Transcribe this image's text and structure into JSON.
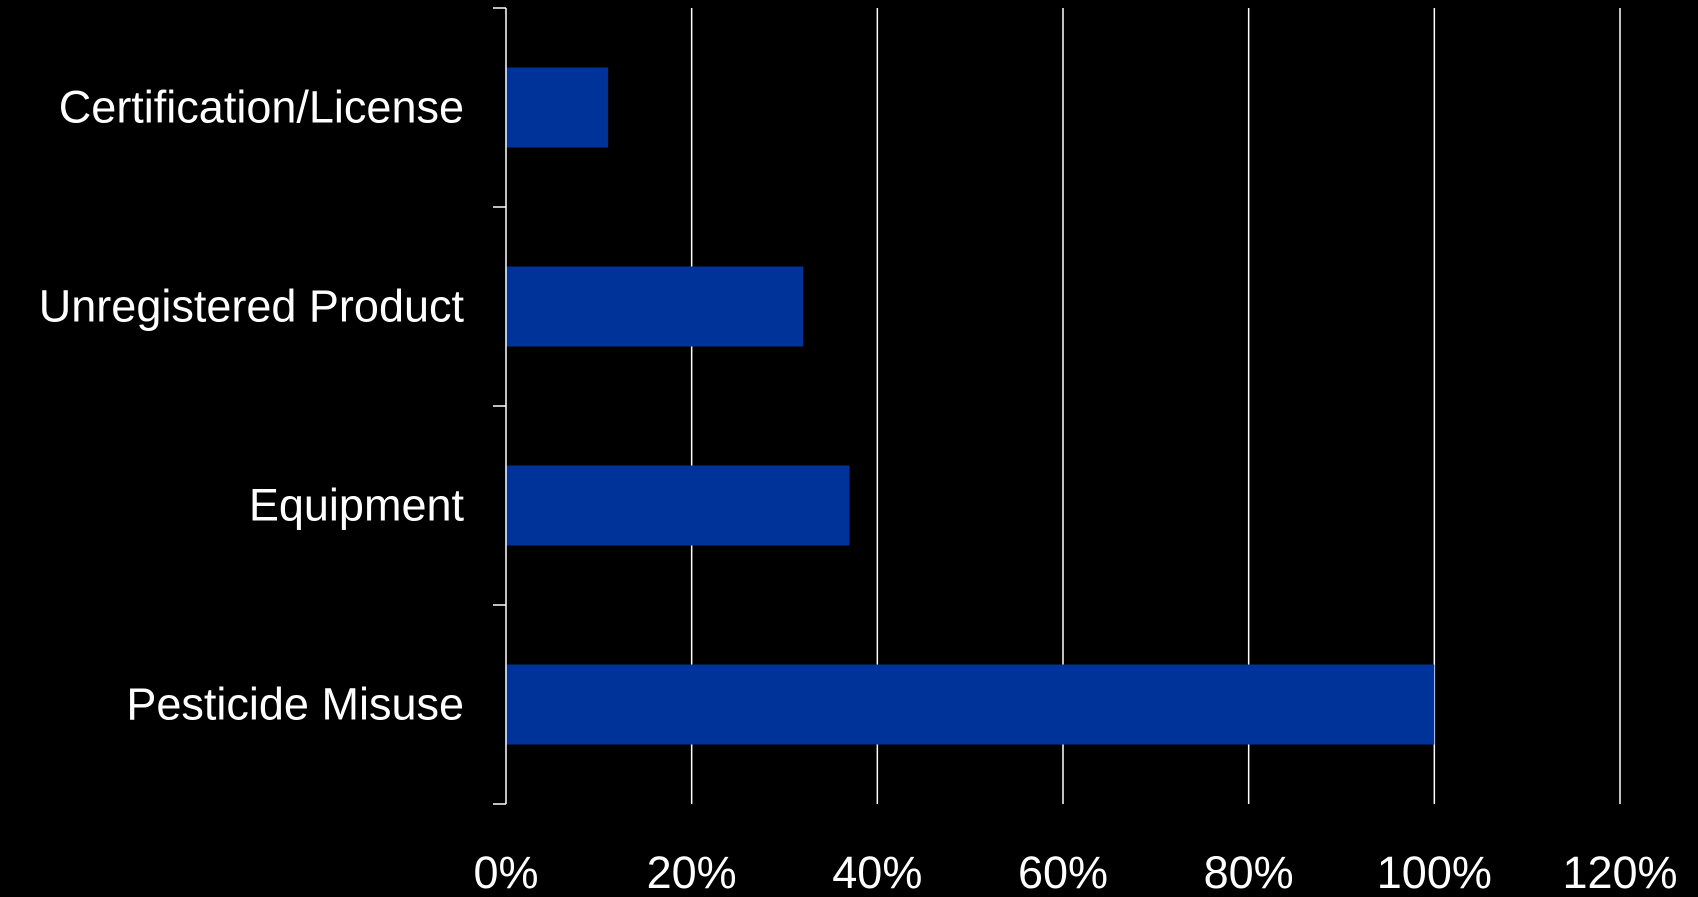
{
  "chart_data": {
    "type": "bar",
    "orientation": "horizontal",
    "categories": [
      "Pesticide Misuse",
      "Equipment",
      "Unregistered Product",
      "Certification/License"
    ],
    "values": [
      100,
      37,
      32,
      11
    ],
    "unit": "%",
    "xlim": [
      0,
      120
    ],
    "x_ticks": [
      0,
      20,
      40,
      60,
      80,
      100,
      120
    ],
    "x_tick_labels": [
      "0%",
      "20%",
      "40%",
      "60%",
      "80%",
      "100%",
      "120%"
    ],
    "title": "",
    "xlabel": "",
    "ylabel": "",
    "grid": "vertical",
    "legend": "none",
    "colors": {
      "background": "#000000",
      "bar": "#003399",
      "grid": "#ffffff",
      "axis": "#ffffff",
      "text": "#ffffff"
    }
  }
}
